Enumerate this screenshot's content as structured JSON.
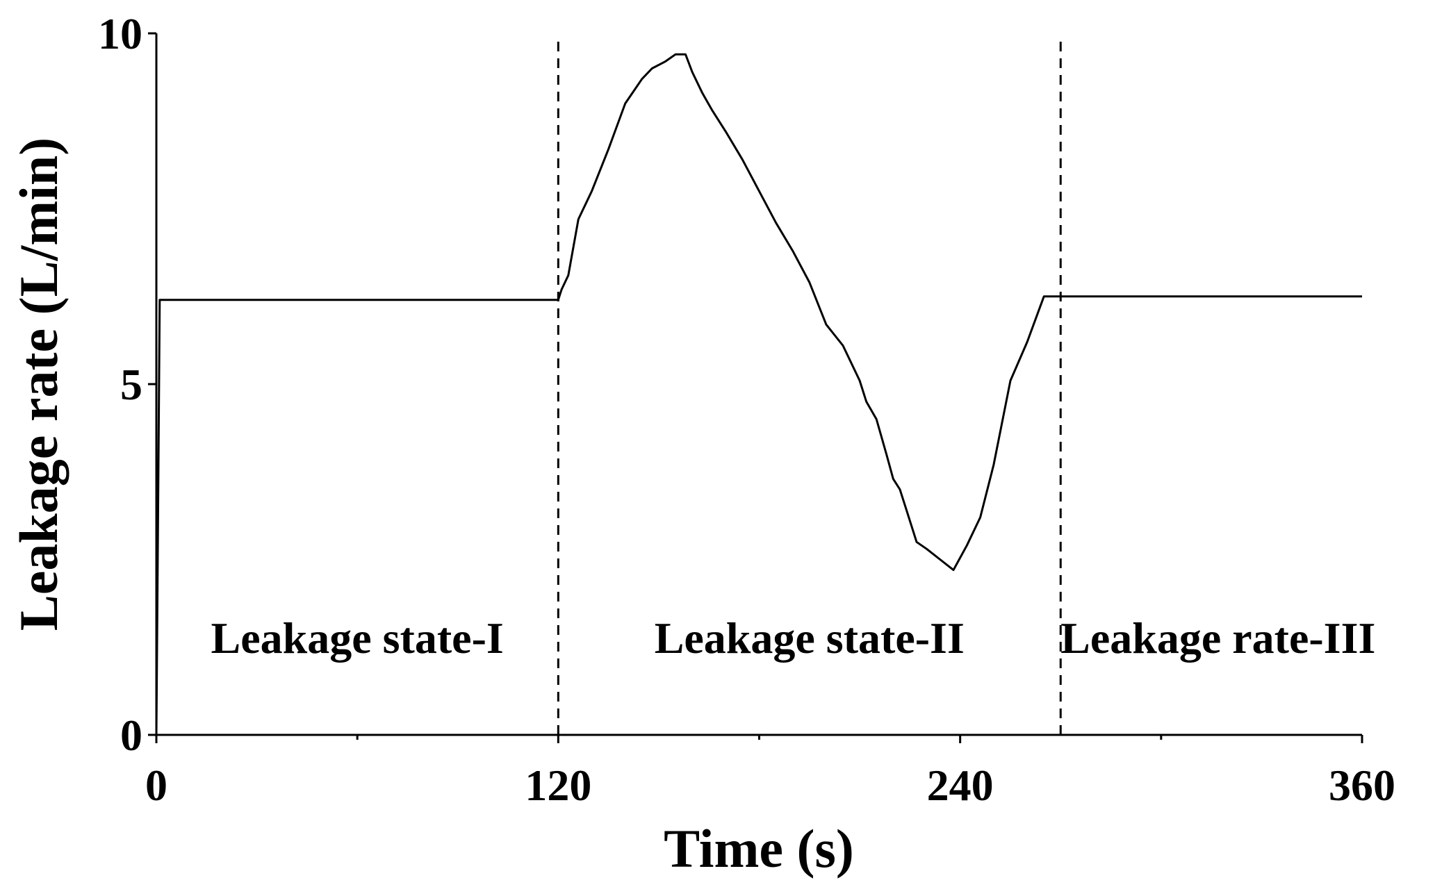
{
  "chart_data": {
    "type": "line",
    "xlabel": "Time (s)",
    "ylabel": "Leakage rate (L/min)",
    "xlim": [
      0,
      360
    ],
    "ylim": [
      0,
      10
    ],
    "x_ticks": [
      0,
      120,
      240,
      360
    ],
    "x_minor_ticks": [
      60,
      180,
      300
    ],
    "y_ticks": [
      0,
      5,
      10
    ],
    "grid": false,
    "series": [
      {
        "x": [
          0,
          1,
          120,
          121,
          123,
          126,
          130,
          135,
          140,
          145,
          148,
          152,
          155,
          158,
          160,
          163,
          166,
          170,
          175,
          180,
          185,
          190,
          195,
          200,
          205,
          210,
          212,
          215,
          218,
          220,
          222,
          224,
          227,
          230,
          234,
          238,
          242,
          246,
          250,
          255,
          260,
          265,
          268,
          270,
          280,
          300,
          320,
          340,
          360
        ],
        "y": [
          0,
          6.2,
          6.2,
          6.35,
          6.55,
          7.35,
          7.75,
          8.35,
          9.0,
          9.35,
          9.5,
          9.6,
          9.7,
          9.7,
          9.45,
          9.15,
          8.9,
          8.6,
          8.2,
          7.75,
          7.3,
          6.9,
          6.45,
          5.85,
          5.55,
          5.05,
          4.75,
          4.5,
          4.0,
          3.65,
          3.5,
          3.2,
          2.75,
          2.65,
          2.5,
          2.35,
          2.7,
          3.1,
          3.85,
          5.05,
          5.6,
          6.25,
          6.25,
          6.25,
          6.25,
          6.25,
          6.25,
          6.25,
          6.25
        ]
      }
    ],
    "dividers_x": [
      120,
      270
    ],
    "regions": [
      {
        "label": "Leakage state-I",
        "x": 60
      },
      {
        "label": "Leakage state-II",
        "x": 195
      },
      {
        "label": "Leakage rate-III",
        "x": 317
      }
    ]
  }
}
